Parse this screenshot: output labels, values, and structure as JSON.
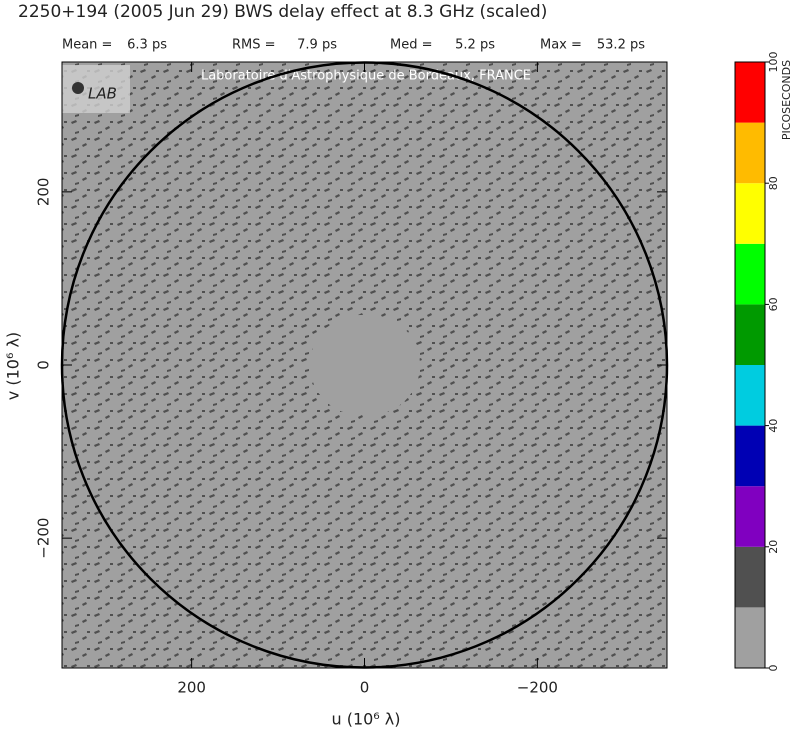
{
  "chart_data": {
    "type": "uvmap",
    "title": "2250+194  (2005 Jun 29)   BWS delay effect at  8.3 GHz (scaled)",
    "stats": [
      {
        "label": "Mean =",
        "value": "6.3 ps"
      },
      {
        "label": "RMS =",
        "value": "7.9 ps"
      },
      {
        "label": "Med =",
        "value": "5.2 ps"
      },
      {
        "label": "Max =",
        "value": "53.2 ps"
      }
    ],
    "watermark": "Laboratoire d'Astrophysique de Bordeaux, FRANCE",
    "logo": "LAB",
    "xlabel": "u  (10⁶ λ)",
    "ylabel": "v  (10⁶ λ)",
    "xlim": [
      350,
      -350
    ],
    "ylim": [
      -350,
      350
    ],
    "xticks": [
      200,
      0,
      {
        "value": -200,
        "label": "−200"
      }
    ],
    "yticks": [
      {
        "value": -200,
        "label": "−200"
      },
      0,
      200
    ],
    "circle_radius": 350,
    "colorbar": {
      "label": "PICOSECONDS",
      "lim": [
        0,
        100
      ],
      "ticks": [
        0,
        20,
        40,
        60,
        80,
        100
      ],
      "bins": [
        0,
        10,
        20,
        30,
        40,
        50,
        60,
        70,
        80,
        90,
        100
      ],
      "colors": [
        "#a0a0a0",
        "#505050",
        "#8000c0",
        "#0000b4",
        "#00cce0",
        "#009a00",
        "#00ff00",
        "#ffff00",
        "#ffbb00",
        "#ff0000"
      ]
    }
  }
}
